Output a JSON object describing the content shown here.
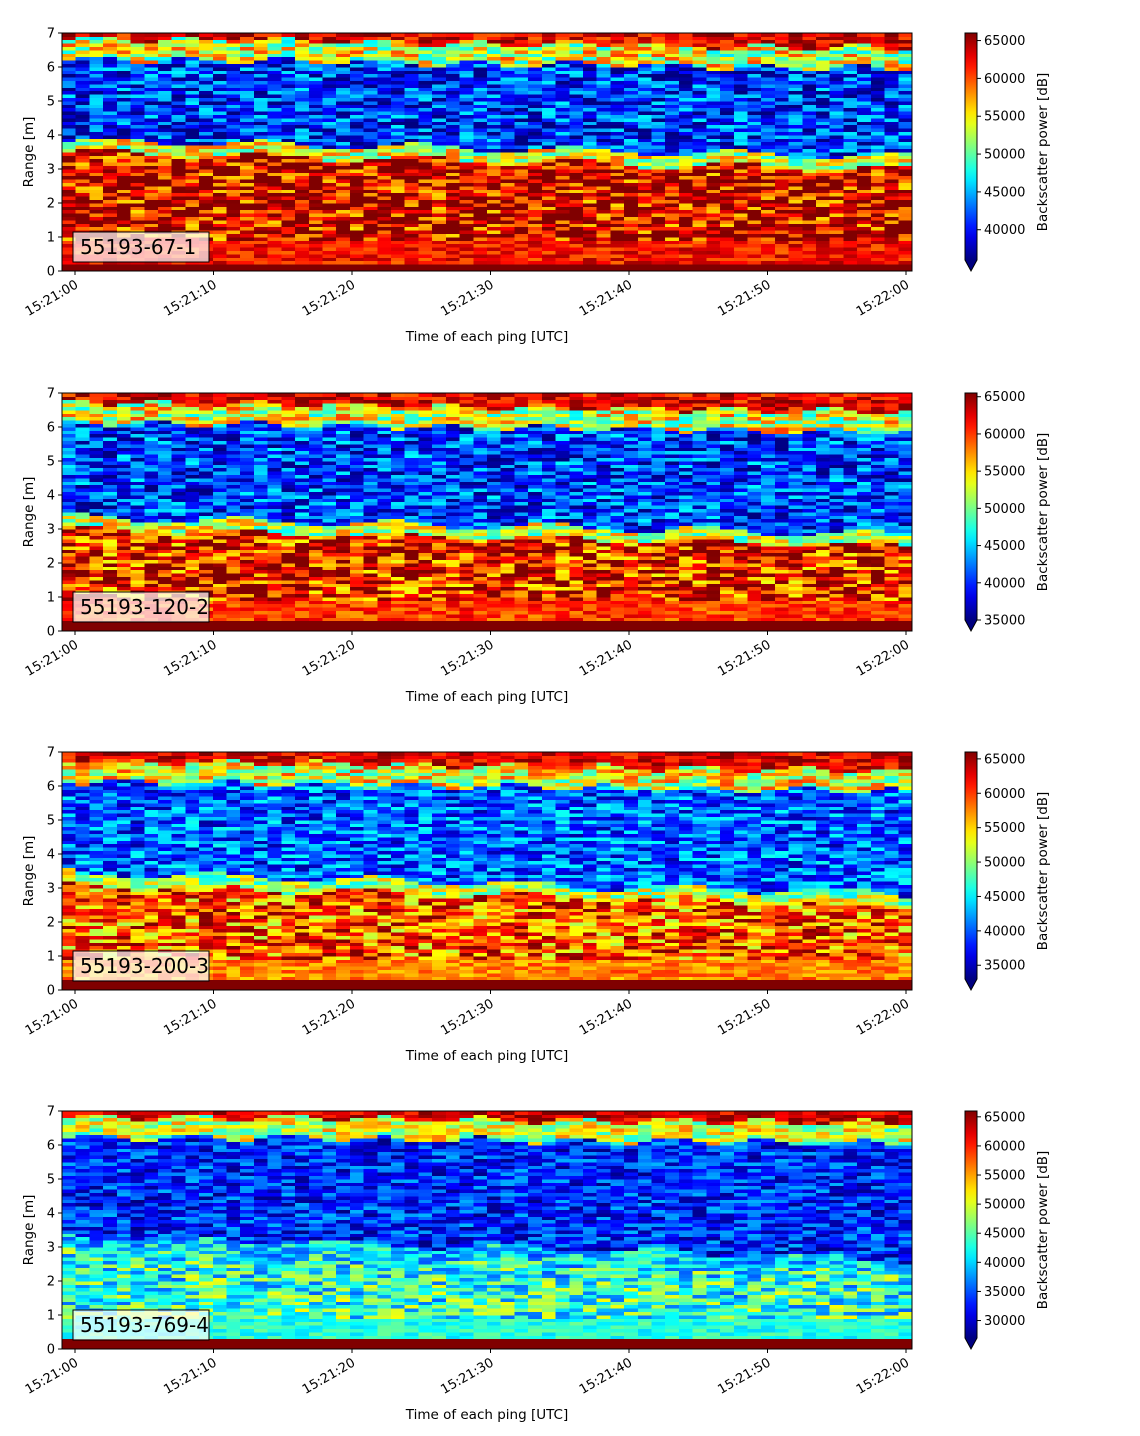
{
  "chart_data": [
    {
      "type": "heatmap",
      "panel_label": "55193-67-1",
      "xlabel": "Time of each ping [UTC]",
      "ylabel": "Range [m]",
      "colorbar_label": "Backscatter power [dB]",
      "colormap": "jet",
      "colorbar_extend": "min",
      "x_tick_labels": [
        "15:21:00",
        "15:21:10",
        "15:21:20",
        "15:21:30",
        "15:21:40",
        "15:21:50",
        "15:22:00"
      ],
      "x_range": [
        "15:21:00",
        "15:22:00"
      ],
      "y_ticks": [
        0,
        1,
        2,
        3,
        4,
        5,
        6,
        7
      ],
      "ylim": [
        0,
        7
      ],
      "clim": [
        36000,
        66000
      ],
      "colorbar_ticks": [
        40000,
        45000,
        50000,
        55000,
        60000,
        65000
      ],
      "structure": {
        "near_band_top_m": 0.25,
        "strong_layer_top_m_start": 3.5,
        "strong_layer_top_m_end": 3.0,
        "surface_m_start": 6.6,
        "surface_m_end": 6.3,
        "noise_floor": 41000,
        "strong_level": 66000
      }
    },
    {
      "type": "heatmap",
      "panel_label": "55193-120-2",
      "xlabel": "Time of each ping [UTC]",
      "ylabel": "Range [m]",
      "colorbar_label": "Backscatter power [dB]",
      "colormap": "jet",
      "colorbar_extend": "min",
      "x_tick_labels": [
        "15:21:00",
        "15:21:10",
        "15:21:20",
        "15:21:30",
        "15:21:40",
        "15:21:50",
        "15:22:00"
      ],
      "x_range": [
        "15:21:00",
        "15:22:00"
      ],
      "y_ticks": [
        0,
        1,
        2,
        3,
        4,
        5,
        6,
        7
      ],
      "ylim": [
        0,
        7
      ],
      "clim": [
        35000,
        65500
      ],
      "colorbar_ticks": [
        35000,
        40000,
        45000,
        50000,
        55000,
        60000,
        65000
      ],
      "structure": {
        "near_band_top_m": 0.3,
        "strong_layer_top_m_start": 3.0,
        "strong_layer_top_m_end": 2.5,
        "surface_m_start": 6.5,
        "surface_m_end": 6.2,
        "noise_floor": 40500,
        "strong_level": 64000
      }
    },
    {
      "type": "heatmap",
      "panel_label": "55193-200-3",
      "xlabel": "Time of each ping [UTC]",
      "ylabel": "Range [m]",
      "colorbar_label": "Backscatter power [dB]",
      "colormap": "jet",
      "colorbar_extend": "min",
      "x_tick_labels": [
        "15:21:00",
        "15:21:10",
        "15:21:20",
        "15:21:30",
        "15:21:40",
        "15:21:50",
        "15:22:00"
      ],
      "x_range": [
        "15:21:00",
        "15:22:00"
      ],
      "y_ticks": [
        0,
        1,
        2,
        3,
        4,
        5,
        6,
        7
      ],
      "ylim": [
        0,
        7
      ],
      "clim": [
        33000,
        66000
      ],
      "colorbar_ticks": [
        35000,
        40000,
        45000,
        50000,
        55000,
        60000,
        65000
      ],
      "structure": {
        "near_band_top_m": 0.3,
        "strong_layer_top_m_start": 3.1,
        "strong_layer_top_m_end": 2.5,
        "surface_m_start": 6.5,
        "surface_m_end": 6.2,
        "noise_floor": 40000,
        "strong_level": 61500
      }
    },
    {
      "type": "heatmap",
      "panel_label": "55193-769-4",
      "xlabel": "Time of each ping [UTC]",
      "ylabel": "Range [m]",
      "colorbar_label": "Backscatter power [dB]",
      "colormap": "jet",
      "colorbar_extend": "min",
      "x_tick_labels": [
        "15:21:00",
        "15:21:10",
        "15:21:20",
        "15:21:30",
        "15:21:40",
        "15:21:50",
        "15:22:00"
      ],
      "x_range": [
        "15:21:00",
        "15:22:00"
      ],
      "y_ticks": [
        0,
        1,
        2,
        3,
        4,
        5,
        6,
        7
      ],
      "ylim": [
        0,
        7
      ],
      "clim": [
        27000,
        66000
      ],
      "colorbar_ticks": [
        30000,
        35000,
        40000,
        45000,
        50000,
        55000,
        60000,
        65000
      ],
      "structure": {
        "near_band_top_m": 0.3,
        "strong_layer_top_m_start": 3.0,
        "strong_layer_top_m_end": 2.3,
        "surface_m_start": 6.6,
        "surface_m_end": 6.4,
        "noise_floor": 33000,
        "strong_level": 47000
      }
    }
  ]
}
